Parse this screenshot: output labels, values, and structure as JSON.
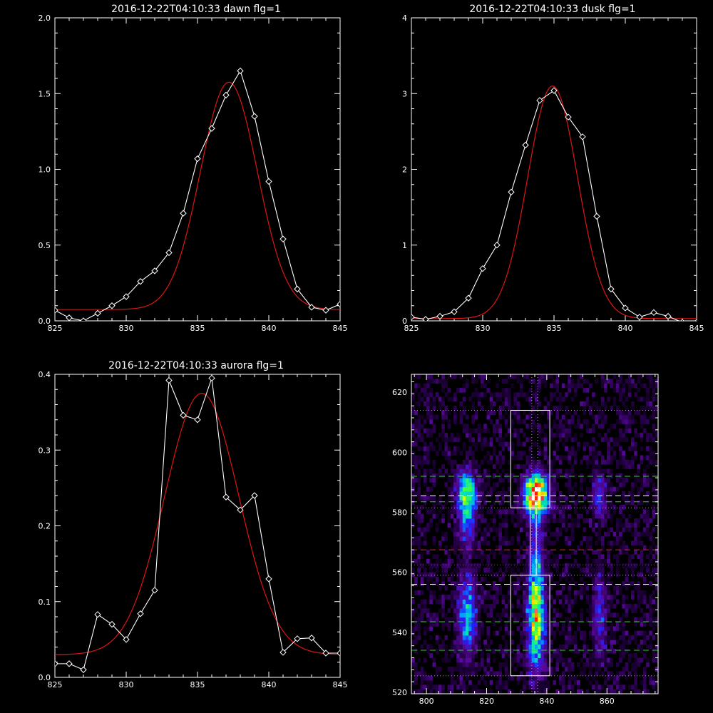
{
  "chart_data": [
    {
      "id": "dawn",
      "type": "line",
      "title": "2016-12-22T04:10:33 dawn flg=1",
      "xlim": [
        825,
        845
      ],
      "ylim": [
        0,
        2.0
      ],
      "xticks": [
        825,
        830,
        835,
        840,
        845
      ],
      "yticks": [
        0.0,
        0.5,
        1.0,
        1.5,
        2.0
      ],
      "ytick_labels": [
        "0.0",
        "0.5",
        "1.0",
        "1.5",
        "2.0"
      ],
      "colors": {
        "data": "#ffffff",
        "fit": "#e01414"
      },
      "series": [
        {
          "values": [
            [
              825,
              0.07
            ],
            [
              826,
              0.02
            ],
            [
              827,
              0.0
            ],
            [
              828,
              0.05
            ],
            [
              829,
              0.1
            ],
            [
              830,
              0.16
            ],
            [
              831,
              0.26
            ],
            [
              832,
              0.33
            ],
            [
              833,
              0.45
            ],
            [
              834,
              0.71
            ],
            [
              835,
              1.07
            ],
            [
              836,
              1.27
            ],
            [
              837,
              1.49
            ],
            [
              838,
              1.65
            ],
            [
              839,
              1.35
            ],
            [
              840,
              0.92
            ],
            [
              841,
              0.54
            ],
            [
              842,
              0.21
            ],
            [
              843,
              0.09
            ],
            [
              844,
              0.07
            ],
            [
              845,
              0.11
            ]
          ]
        }
      ],
      "fit": {
        "model": "gaussian",
        "amplitude": 1.5,
        "center": 837.2,
        "sigma": 2.0,
        "offset": 0.075
      }
    },
    {
      "id": "dusk",
      "type": "line",
      "title": "2016-12-22T04:10:33 dusk flg=1",
      "xlim": [
        825,
        845
      ],
      "ylim": [
        0,
        4
      ],
      "xticks": [
        825,
        830,
        835,
        840,
        845
      ],
      "yticks": [
        0,
        1,
        2,
        3,
        4
      ],
      "ytick_labels": [
        "0",
        "1",
        "2",
        "3",
        "4"
      ],
      "colors": {
        "data": "#ffffff",
        "fit": "#e01414"
      },
      "series": [
        {
          "values": [
            [
              825,
              0.05
            ],
            [
              826,
              0.02
            ],
            [
              827,
              0.06
            ],
            [
              828,
              0.12
            ],
            [
              829,
              0.3
            ],
            [
              830,
              0.69
            ],
            [
              831,
              1.0
            ],
            [
              832,
              1.7
            ],
            [
              833,
              2.32
            ],
            [
              834,
              2.91
            ],
            [
              835,
              3.04
            ],
            [
              836,
              2.69
            ],
            [
              837,
              2.43
            ],
            [
              838,
              1.38
            ],
            [
              839,
              0.42
            ],
            [
              840,
              0.17
            ],
            [
              841,
              0.05
            ],
            [
              842,
              0.11
            ],
            [
              843,
              0.06
            ],
            [
              844,
              -0.02
            ],
            [
              845,
              -0.02
            ]
          ]
        }
      ],
      "fit": {
        "model": "gaussian",
        "amplitude": 3.07,
        "center": 834.9,
        "sigma": 1.75,
        "offset": 0.03
      }
    },
    {
      "id": "aurora",
      "type": "line",
      "title": "2016-12-22T04:10:33 aurora flg=1",
      "xlim": [
        825,
        845
      ],
      "ylim": [
        0,
        0.4
      ],
      "xticks": [
        825,
        830,
        835,
        840,
        845
      ],
      "yticks": [
        0.0,
        0.1,
        0.2,
        0.3,
        0.4
      ],
      "ytick_labels": [
        "0.0",
        "0.1",
        "0.2",
        "0.3",
        "0.4"
      ],
      "colors": {
        "data": "#ffffff",
        "fit": "#e01414"
      },
      "series": [
        {
          "values": [
            [
              825,
              0.018
            ],
            [
              826,
              0.018
            ],
            [
              827,
              0.01
            ],
            [
              828,
              0.083
            ],
            [
              829,
              0.07
            ],
            [
              830,
              0.05
            ],
            [
              831,
              0.084
            ],
            [
              832,
              0.115
            ],
            [
              833,
              0.392
            ],
            [
              834,
              0.346
            ],
            [
              835,
              0.34
            ],
            [
              836,
              0.395
            ],
            [
              837,
              0.238
            ],
            [
              838,
              0.221
            ],
            [
              839,
              0.24
            ],
            [
              840,
              0.13
            ],
            [
              841,
              0.033
            ],
            [
              842,
              0.051
            ],
            [
              843,
              0.052
            ],
            [
              844,
              0.032
            ],
            [
              845,
              0.032
            ]
          ]
        }
      ],
      "fit": {
        "model": "gaussian",
        "amplitude": 0.345,
        "center": 835.3,
        "sigma": 2.6,
        "offset": 0.03
      }
    },
    {
      "id": "spectral-image",
      "type": "heatmap",
      "title": "",
      "xlim": [
        795,
        877
      ],
      "ylim": [
        519.5,
        626
      ],
      "xticks": [
        800,
        820,
        840,
        860
      ],
      "yticks": [
        520,
        540,
        560,
        580,
        600,
        620
      ],
      "colormap": [
        "#000000",
        "#2a0050",
        "#5a0aa0",
        "#2020ff",
        "#00a0ff",
        "#00e0c0",
        "#40ff40",
        "#ffff00",
        "#ff6000",
        "#ff0000",
        "#ffffff"
      ],
      "intensity_sources": [
        {
          "x": 813,
          "y": 586,
          "sx": 2.2,
          "sy": 4.5,
          "peak": 0.55
        },
        {
          "x": 813,
          "y": 577,
          "sx": 1.8,
          "sy": 6,
          "peak": 0.3
        },
        {
          "x": 813,
          "y": 545,
          "sx": 2.0,
          "sy": 9,
          "peak": 0.4
        },
        {
          "x": 836,
          "y": 585,
          "sx": 2.6,
          "sy": 4.5,
          "peak": 1.0
        },
        {
          "x": 836,
          "y": 560,
          "sx": 1.5,
          "sy": 12,
          "peak": 0.32
        },
        {
          "x": 836,
          "y": 542,
          "sx": 2.0,
          "sy": 10,
          "peak": 0.55
        },
        {
          "x": 857,
          "y": 585,
          "sx": 1.6,
          "sy": 5,
          "peak": 0.25
        },
        {
          "x": 857,
          "y": 545,
          "sx": 1.5,
          "sy": 10,
          "peak": 0.22
        }
      ],
      "background_level": 0.09,
      "boxes": [
        {
          "x": [
            828,
            841
          ],
          "y": [
            581.5,
            614
          ]
        },
        {
          "x": [
            828,
            841
          ],
          "y": [
            525.5,
            559
          ]
        }
      ],
      "connector": {
        "x": [
          834.5,
          836.5
        ],
        "y": [
          559,
          581.5
        ]
      },
      "h_lines": [
        {
          "y": 614,
          "color": "#d070d0",
          "style": "dotted"
        },
        {
          "y": 581.5,
          "color": "#d070d0",
          "style": "dotted"
        },
        {
          "y": 559,
          "color": "#d070d0",
          "style": "dotted"
        },
        {
          "y": 525.5,
          "color": "#d070d0",
          "style": "dotted"
        },
        {
          "y": 592,
          "color": "#30d030",
          "style": "dashed"
        },
        {
          "y": 583.5,
          "color": "#30d030",
          "style": "dashed"
        },
        {
          "y": 543.5,
          "color": "#30d030",
          "style": "dashed"
        },
        {
          "y": 534,
          "color": "#30d030",
          "style": "dashed"
        },
        {
          "y": 585.5,
          "color": "#ffffff",
          "style": "dashed"
        },
        {
          "y": 556,
          "color": "#ffffff",
          "style": "dashed"
        },
        {
          "y": 567.5,
          "color": "#e02020",
          "style": "dashed"
        },
        {
          "y": 562.5,
          "color": "#e02020",
          "style": "dotted"
        }
      ],
      "v_lines": [
        {
          "x": 835,
          "color": "#d070d0",
          "style": "dotted"
        },
        {
          "x": 837,
          "color": "#d070d0",
          "style": "dotted"
        }
      ]
    }
  ]
}
